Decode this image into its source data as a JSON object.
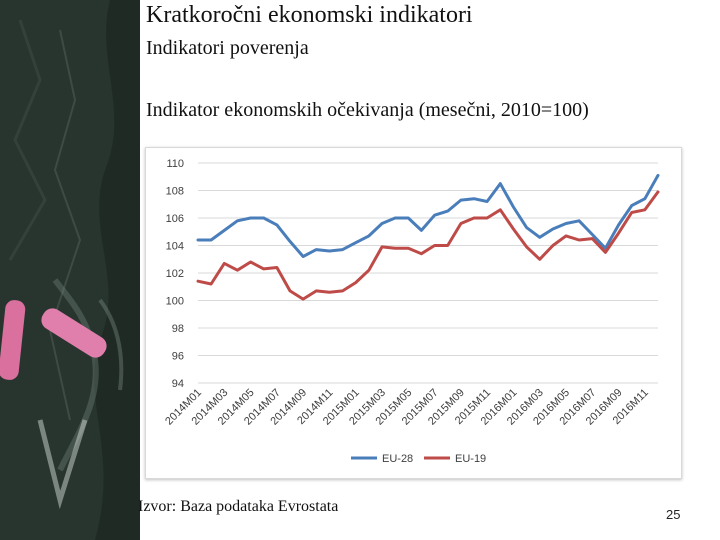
{
  "slide": {
    "title": "Kratkoročni ekonomski indikatori",
    "subtitle": "Indikatori poverenja",
    "chart_heading": "Indikator ekonomskih očekivanja (mesečni, 2010=100)",
    "source": "Izvor: Baza podataka Evrostata",
    "page_number": "25"
  },
  "colors": {
    "eu28": "#4a7ebb",
    "eu19": "#be4b48",
    "background_dark": "#1f2a24",
    "chalk_pink": "#d9709e"
  },
  "chart_data": {
    "type": "line",
    "x": [
      "2014M01",
      "2014M02",
      "2014M03",
      "2014M04",
      "2014M05",
      "2014M06",
      "2014M07",
      "2014M08",
      "2014M09",
      "2014M10",
      "2014M11",
      "2014M12",
      "2015M01",
      "2015M02",
      "2015M03",
      "2015M04",
      "2015M05",
      "2015M06",
      "2015M07",
      "2015M08",
      "2015M09",
      "2015M10",
      "2015M11",
      "2015M12",
      "2016M01",
      "2016M02",
      "2016M03",
      "2016M04",
      "2016M05",
      "2016M06",
      "2016M07",
      "2016M08",
      "2016M09",
      "2016M10",
      "2016M11",
      "2016M12"
    ],
    "tick_labels": [
      "2014M01",
      "2014M03",
      "2014M05",
      "2014M07",
      "2014M09",
      "2014M11",
      "2015M01",
      "2015M03",
      "2015M05",
      "2015M07",
      "2015M09",
      "2015M11",
      "2016M01",
      "2016M03",
      "2016M05",
      "2016M07",
      "2016M09",
      "2016M11"
    ],
    "series": [
      {
        "name": "EU-28",
        "values": [
          104.4,
          104.4,
          105.1,
          105.8,
          106.0,
          106.0,
          105.5,
          104.3,
          103.2,
          103.7,
          103.6,
          103.7,
          104.2,
          104.7,
          105.6,
          106.0,
          106.0,
          105.1,
          106.2,
          106.5,
          107.3,
          107.4,
          107.2,
          108.5,
          106.8,
          105.3,
          104.6,
          105.2,
          105.6,
          105.8,
          104.8,
          103.8,
          105.5,
          106.9,
          107.4,
          109.1
        ]
      },
      {
        "name": "EU-19",
        "values": [
          101.4,
          101.2,
          102.7,
          102.2,
          102.8,
          102.3,
          102.4,
          100.7,
          100.1,
          100.7,
          100.6,
          100.7,
          101.3,
          102.2,
          103.9,
          103.8,
          103.8,
          103.4,
          104.0,
          104.0,
          105.6,
          106.0,
          106.0,
          106.6,
          105.2,
          103.9,
          103.0,
          104.0,
          104.7,
          104.4,
          104.5,
          103.5,
          104.9,
          106.4,
          106.6,
          107.9
        ]
      }
    ],
    "ylim": [
      94,
      110
    ],
    "yticks": [
      94,
      96,
      98,
      100,
      102,
      104,
      106,
      108,
      110
    ],
    "grid": true,
    "legend": "bottom",
    "title": "",
    "xlabel": "",
    "ylabel": ""
  }
}
